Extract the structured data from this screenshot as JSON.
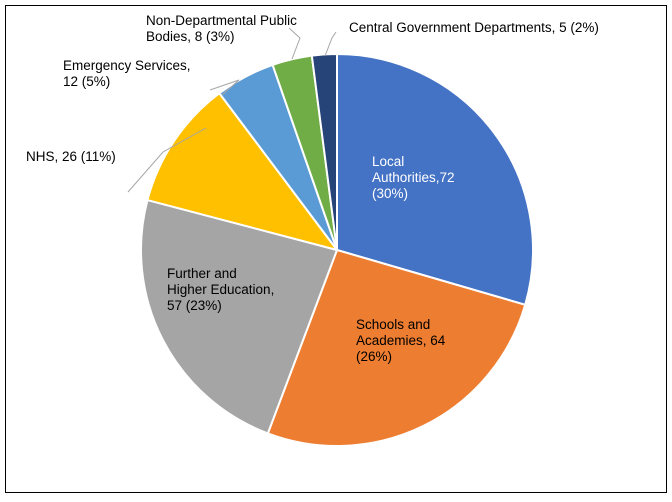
{
  "chart_data": {
    "type": "pie",
    "title": "",
    "categories": [
      "Local Authorities",
      "Schools and Academies",
      "Further and Higher Education",
      "NHS",
      "Emergency Services",
      "Non-Departmental Public Bodies",
      "Central Government Departments"
    ],
    "values": [
      72,
      64,
      57,
      26,
      12,
      8,
      5
    ],
    "percents": [
      30,
      26,
      23,
      11,
      5,
      3,
      2
    ],
    "colors": [
      "#4472C4",
      "#ED7D31",
      "#A5A5A5",
      "#FFC000",
      "#5B9BD5",
      "#70AD47",
      "#264478"
    ],
    "data_labels": [
      [
        "Local",
        "Authorities,72",
        "(30%)"
      ],
      [
        "Schools and",
        "Academies, 64",
        "(26%)"
      ],
      [
        "Further and",
        "Higher Education,",
        "57 (23%)"
      ],
      [
        "NHS, 26 (11%)"
      ],
      [
        "Emergency Services,",
        "12 (5%)"
      ],
      [
        "Non-Departmental Public",
        "Bodies, 8 (3%)"
      ],
      [
        "Central Government Departments, 5 (2%)"
      ]
    ],
    "legend": "none"
  }
}
